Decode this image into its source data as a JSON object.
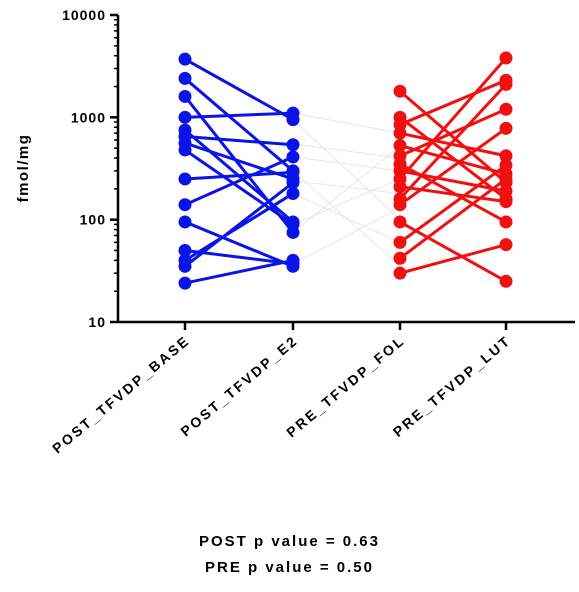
{
  "chart_data": {
    "type": "line",
    "ylabel": "fmol/mg",
    "yscale": "log",
    "ylim": [
      10,
      10000
    ],
    "yticks": [
      "10",
      "100",
      "1000",
      "10000"
    ],
    "categories": [
      "POST_TFVDP_BASE",
      "POST_TFVDP_E2",
      "PRE_TFVDP_FOL",
      "PRE_TFVDP_LUT"
    ],
    "colors": {
      "post": "#0a14e6",
      "pre": "#f01010",
      "bridge": "#e6e6e6"
    },
    "post_pairs": [
      [
        3700,
        950
      ],
      [
        2400,
        300
      ],
      [
        1600,
        75
      ],
      [
        1000,
        1100
      ],
      [
        750,
        95
      ],
      [
        650,
        540
      ],
      [
        560,
        250
      ],
      [
        480,
        90
      ],
      [
        250,
        290
      ],
      [
        140,
        410
      ],
      [
        95,
        35
      ],
      [
        50,
        37
      ],
      [
        40,
        180
      ],
      [
        35,
        230
      ],
      [
        24,
        40
      ]
    ],
    "bridge_pairs": [
      [
        950,
        100
      ],
      [
        550,
        400
      ],
      [
        410,
        300
      ],
      [
        300,
        35
      ],
      [
        240,
        180
      ],
      [
        180,
        60
      ],
      [
        90,
        250
      ],
      [
        37,
        130
      ],
      [
        1100,
        700
      ],
      [
        75,
        520
      ]
    ],
    "pre_pairs": [
      [
        1800,
        230
      ],
      [
        1000,
        160
      ],
      [
        850,
        2300
      ],
      [
        700,
        420
      ],
      [
        530,
        280
      ],
      [
        420,
        1200
      ],
      [
        350,
        95
      ],
      [
        300,
        190
      ],
      [
        250,
        3800
      ],
      [
        210,
        150
      ],
      [
        160,
        2100
      ],
      [
        140,
        780
      ],
      [
        95,
        25
      ],
      [
        60,
        340
      ],
      [
        42,
        250
      ],
      [
        30,
        57
      ]
    ]
  },
  "footer": {
    "post_p": "POST p value = 0.63",
    "pre_p": "PRE p value = 0.50"
  }
}
